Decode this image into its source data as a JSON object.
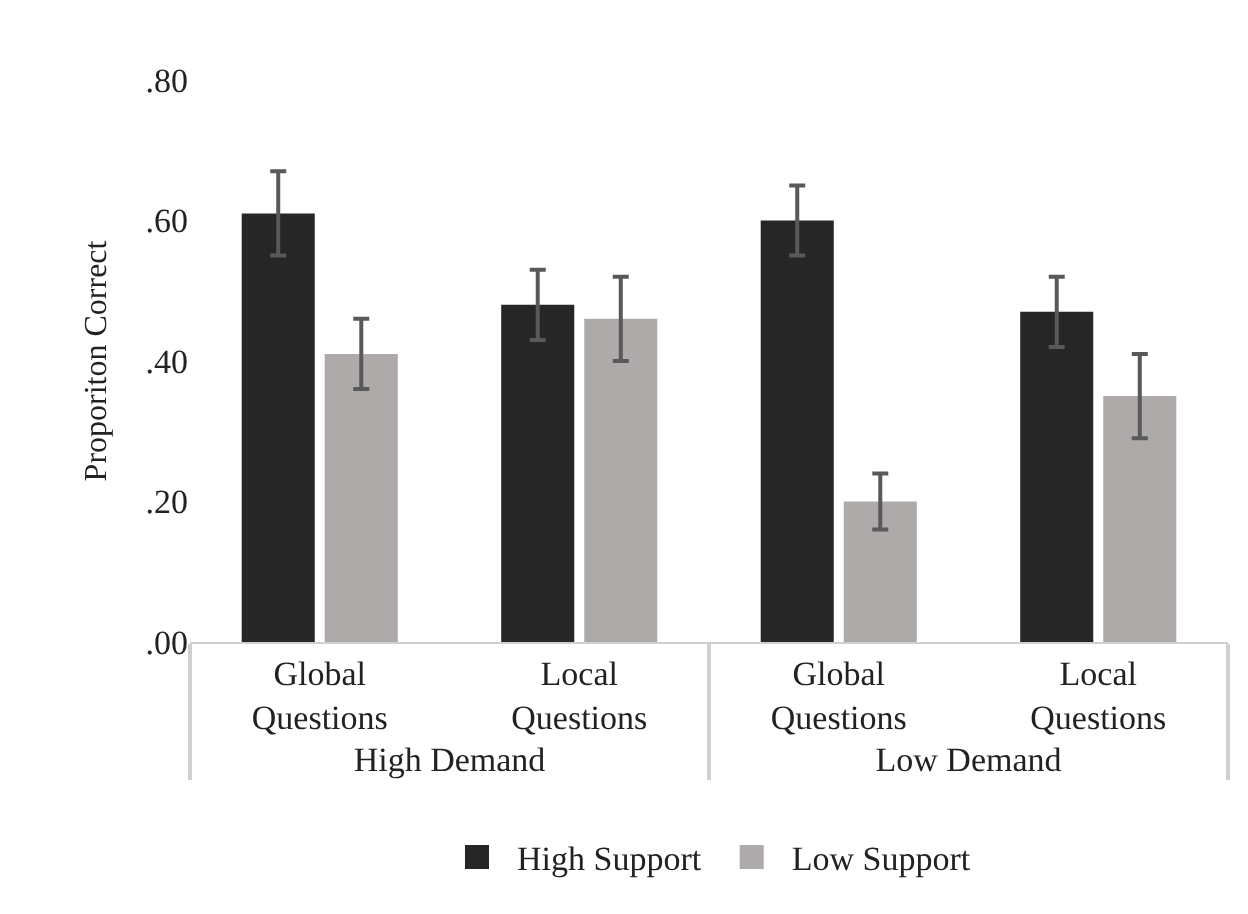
{
  "chart_data": {
    "type": "bar",
    "ylabel": "Proporiton Correct",
    "categories": [
      "Global Questions",
      "Local Questions",
      "Global Questions",
      "Local Questions"
    ],
    "annotations": [
      "High Demand",
      "Low Demand"
    ],
    "series": [
      {
        "name": "High Support",
        "color": "#262626",
        "values": [
          0.61,
          0.48,
          0.6,
          0.47
        ],
        "errors": [
          0.06,
          0.05,
          0.05,
          0.05
        ]
      },
      {
        "name": "Low Support",
        "color": "#aeaaaa",
        "values": [
          0.41,
          0.46,
          0.2,
          0.35
        ],
        "errors": [
          0.05,
          0.06,
          0.04,
          0.06
        ]
      }
    ],
    "ylim": [
      0,
      0.8
    ],
    "yticks": [
      {
        "value": 0,
        "label": ".00"
      },
      {
        "value": 0.2,
        "label": ".20"
      },
      {
        "value": 0.4,
        "label": ".40"
      },
      {
        "value": 0.6,
        "label": ".60"
      },
      {
        "value": 0.8,
        "label": ".80"
      }
    ],
    "grid": false,
    "legend": "bottom"
  }
}
